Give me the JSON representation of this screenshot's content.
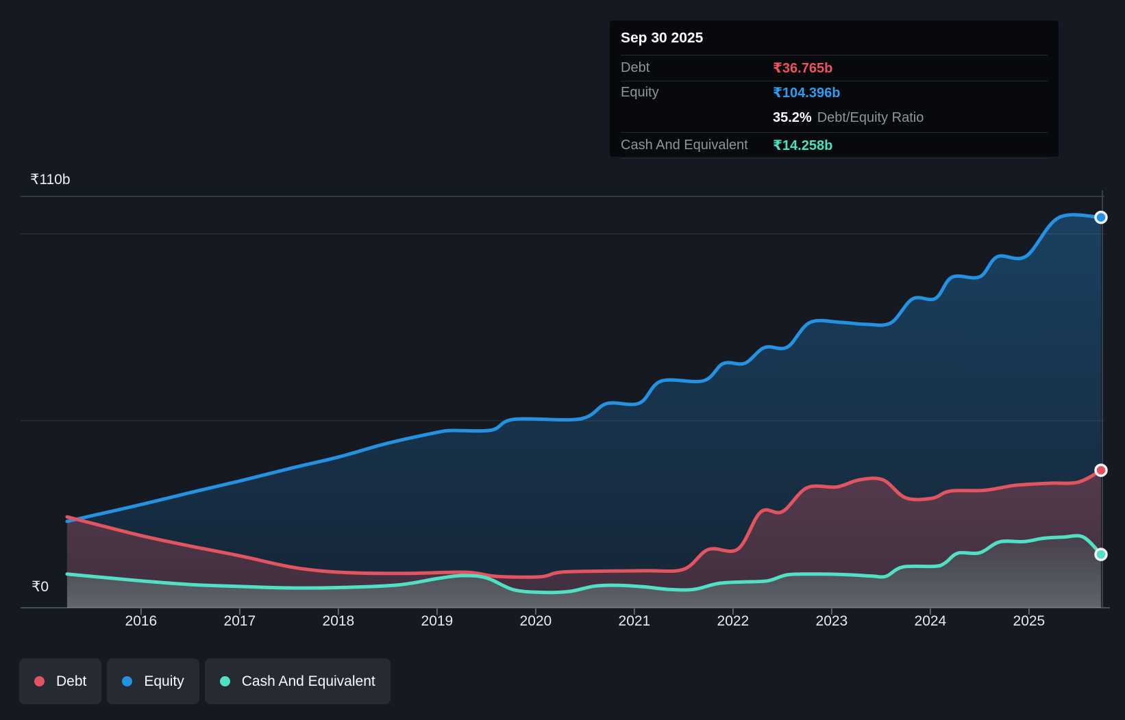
{
  "tooltip": {
    "date": "Sep 30 2025",
    "rows": [
      {
        "label": "Debt",
        "value": "₹36.765b",
        "color": "#ef5360"
      },
      {
        "label": "Equity",
        "value": "₹104.396b",
        "color": "#2f9cf0"
      },
      {
        "label": "Cash And Equivalent",
        "value": "₹14.258b",
        "color": "#47e2c2"
      }
    ],
    "ratio": {
      "value": "35.2%",
      "label": "Debt/Equity Ratio"
    }
  },
  "y_axis": {
    "max_label": "₹110b",
    "zero_label": "₹0"
  },
  "legend": {
    "position": "bottom",
    "items": [
      {
        "label": "Debt",
        "color": "#e2545f"
      },
      {
        "label": "Equity",
        "color": "#2491e1"
      },
      {
        "label": "Cash And Equivalent",
        "color": "#52e0c4"
      }
    ]
  },
  "chart_data": {
    "type": "area",
    "xlabel": "",
    "ylabel": "",
    "xlim": [
      2015.23,
      2025.73
    ],
    "ylim": [
      0,
      110
    ],
    "x_ticks": [
      2016,
      2017,
      2018,
      2019,
      2020,
      2021,
      2022,
      2023,
      2024,
      2025
    ],
    "y_gridlines": [
      110,
      100,
      50
    ],
    "grid": true,
    "crosshair_x": 2025.73,
    "series": [
      {
        "name": "Debt",
        "color": "#e2545f",
        "fill_top": "rgba(226,84,95,0.30)",
        "fill_bottom": "rgba(226,84,95,0.20)",
        "end_value": 36.765,
        "points": [
          [
            2015.25,
            24.3
          ],
          [
            2016.0,
            19.3
          ],
          [
            2016.5,
            16.5
          ],
          [
            2017.0,
            13.9
          ],
          [
            2017.5,
            11.0
          ],
          [
            2017.85,
            9.8
          ],
          [
            2018.2,
            9.3
          ],
          [
            2018.7,
            9.2
          ],
          [
            2019.3,
            9.5
          ],
          [
            2019.6,
            8.4
          ],
          [
            2020.05,
            8.3
          ],
          [
            2020.3,
            9.6
          ],
          [
            2021.1,
            9.9
          ],
          [
            2021.5,
            10.3
          ],
          [
            2021.75,
            15.6
          ],
          [
            2022.05,
            15.7
          ],
          [
            2022.28,
            25.6
          ],
          [
            2022.5,
            25.7
          ],
          [
            2022.75,
            32.1
          ],
          [
            2023.05,
            32.3
          ],
          [
            2023.28,
            34.2
          ],
          [
            2023.52,
            34.2
          ],
          [
            2023.75,
            29.4
          ],
          [
            2024.02,
            29.3
          ],
          [
            2024.2,
            31.2
          ],
          [
            2024.55,
            31.4
          ],
          [
            2024.85,
            32.7
          ],
          [
            2025.2,
            33.3
          ],
          [
            2025.5,
            33.6
          ],
          [
            2025.73,
            36.765
          ]
        ]
      },
      {
        "name": "Equity",
        "color": "#2491e1",
        "fill_top": "rgba(36,145,225,0.33)",
        "fill_bottom": "rgba(36,145,225,0.10)",
        "end_value": 104.396,
        "points": [
          [
            2015.25,
            23.1
          ],
          [
            2015.5,
            24.6
          ],
          [
            2016.0,
            27.6
          ],
          [
            2016.5,
            30.8
          ],
          [
            2017.0,
            33.9
          ],
          [
            2017.5,
            37.2
          ],
          [
            2018.0,
            40.3
          ],
          [
            2018.5,
            44.0
          ],
          [
            2019.0,
            46.9
          ],
          [
            2019.15,
            47.4
          ],
          [
            2019.55,
            47.5
          ],
          [
            2019.78,
            50.4
          ],
          [
            2020.45,
            50.5
          ],
          [
            2020.72,
            54.6
          ],
          [
            2021.05,
            54.7
          ],
          [
            2021.27,
            60.6
          ],
          [
            2021.7,
            60.7
          ],
          [
            2021.9,
            65.3
          ],
          [
            2022.12,
            65.4
          ],
          [
            2022.32,
            69.6
          ],
          [
            2022.55,
            69.7
          ],
          [
            2022.78,
            76.3
          ],
          [
            2023.1,
            76.3
          ],
          [
            2023.35,
            75.8
          ],
          [
            2023.6,
            76.2
          ],
          [
            2023.82,
            82.6
          ],
          [
            2024.05,
            82.7
          ],
          [
            2024.22,
            88.4
          ],
          [
            2024.5,
            88.5
          ],
          [
            2024.68,
            93.9
          ],
          [
            2024.97,
            94.0
          ],
          [
            2025.3,
            104.3
          ],
          [
            2025.73,
            104.396
          ]
        ]
      },
      {
        "name": "Cash And Equivalent",
        "color": "#52e0c4",
        "fill_top": "rgba(82,224,196,0.06)",
        "fill_bottom": "rgba(185,222,214,0.30)",
        "end_value": 14.258,
        "points": [
          [
            2015.25,
            9.0
          ],
          [
            2016.0,
            7.2
          ],
          [
            2016.5,
            6.2
          ],
          [
            2017.0,
            5.7
          ],
          [
            2017.5,
            5.3
          ],
          [
            2018.0,
            5.4
          ],
          [
            2018.6,
            6.1
          ],
          [
            2019.0,
            7.8
          ],
          [
            2019.25,
            8.6
          ],
          [
            2019.5,
            8.0
          ],
          [
            2019.78,
            4.8
          ],
          [
            2020.1,
            4.1
          ],
          [
            2020.35,
            4.4
          ],
          [
            2020.6,
            5.8
          ],
          [
            2020.85,
            6.0
          ],
          [
            2021.1,
            5.6
          ],
          [
            2021.35,
            4.9
          ],
          [
            2021.6,
            4.9
          ],
          [
            2021.85,
            6.5
          ],
          [
            2022.1,
            6.9
          ],
          [
            2022.35,
            7.2
          ],
          [
            2022.55,
            8.8
          ],
          [
            2022.8,
            9.0
          ],
          [
            2023.1,
            8.9
          ],
          [
            2023.4,
            8.5
          ],
          [
            2023.55,
            8.4
          ],
          [
            2023.72,
            10.9
          ],
          [
            2024.05,
            11.1
          ],
          [
            2024.15,
            12.0
          ],
          [
            2024.28,
            14.6
          ],
          [
            2024.5,
            14.7
          ],
          [
            2024.7,
            17.6
          ],
          [
            2024.95,
            17.7
          ],
          [
            2025.15,
            18.6
          ],
          [
            2025.35,
            18.9
          ],
          [
            2025.55,
            18.9
          ],
          [
            2025.73,
            14.258
          ]
        ]
      }
    ]
  }
}
